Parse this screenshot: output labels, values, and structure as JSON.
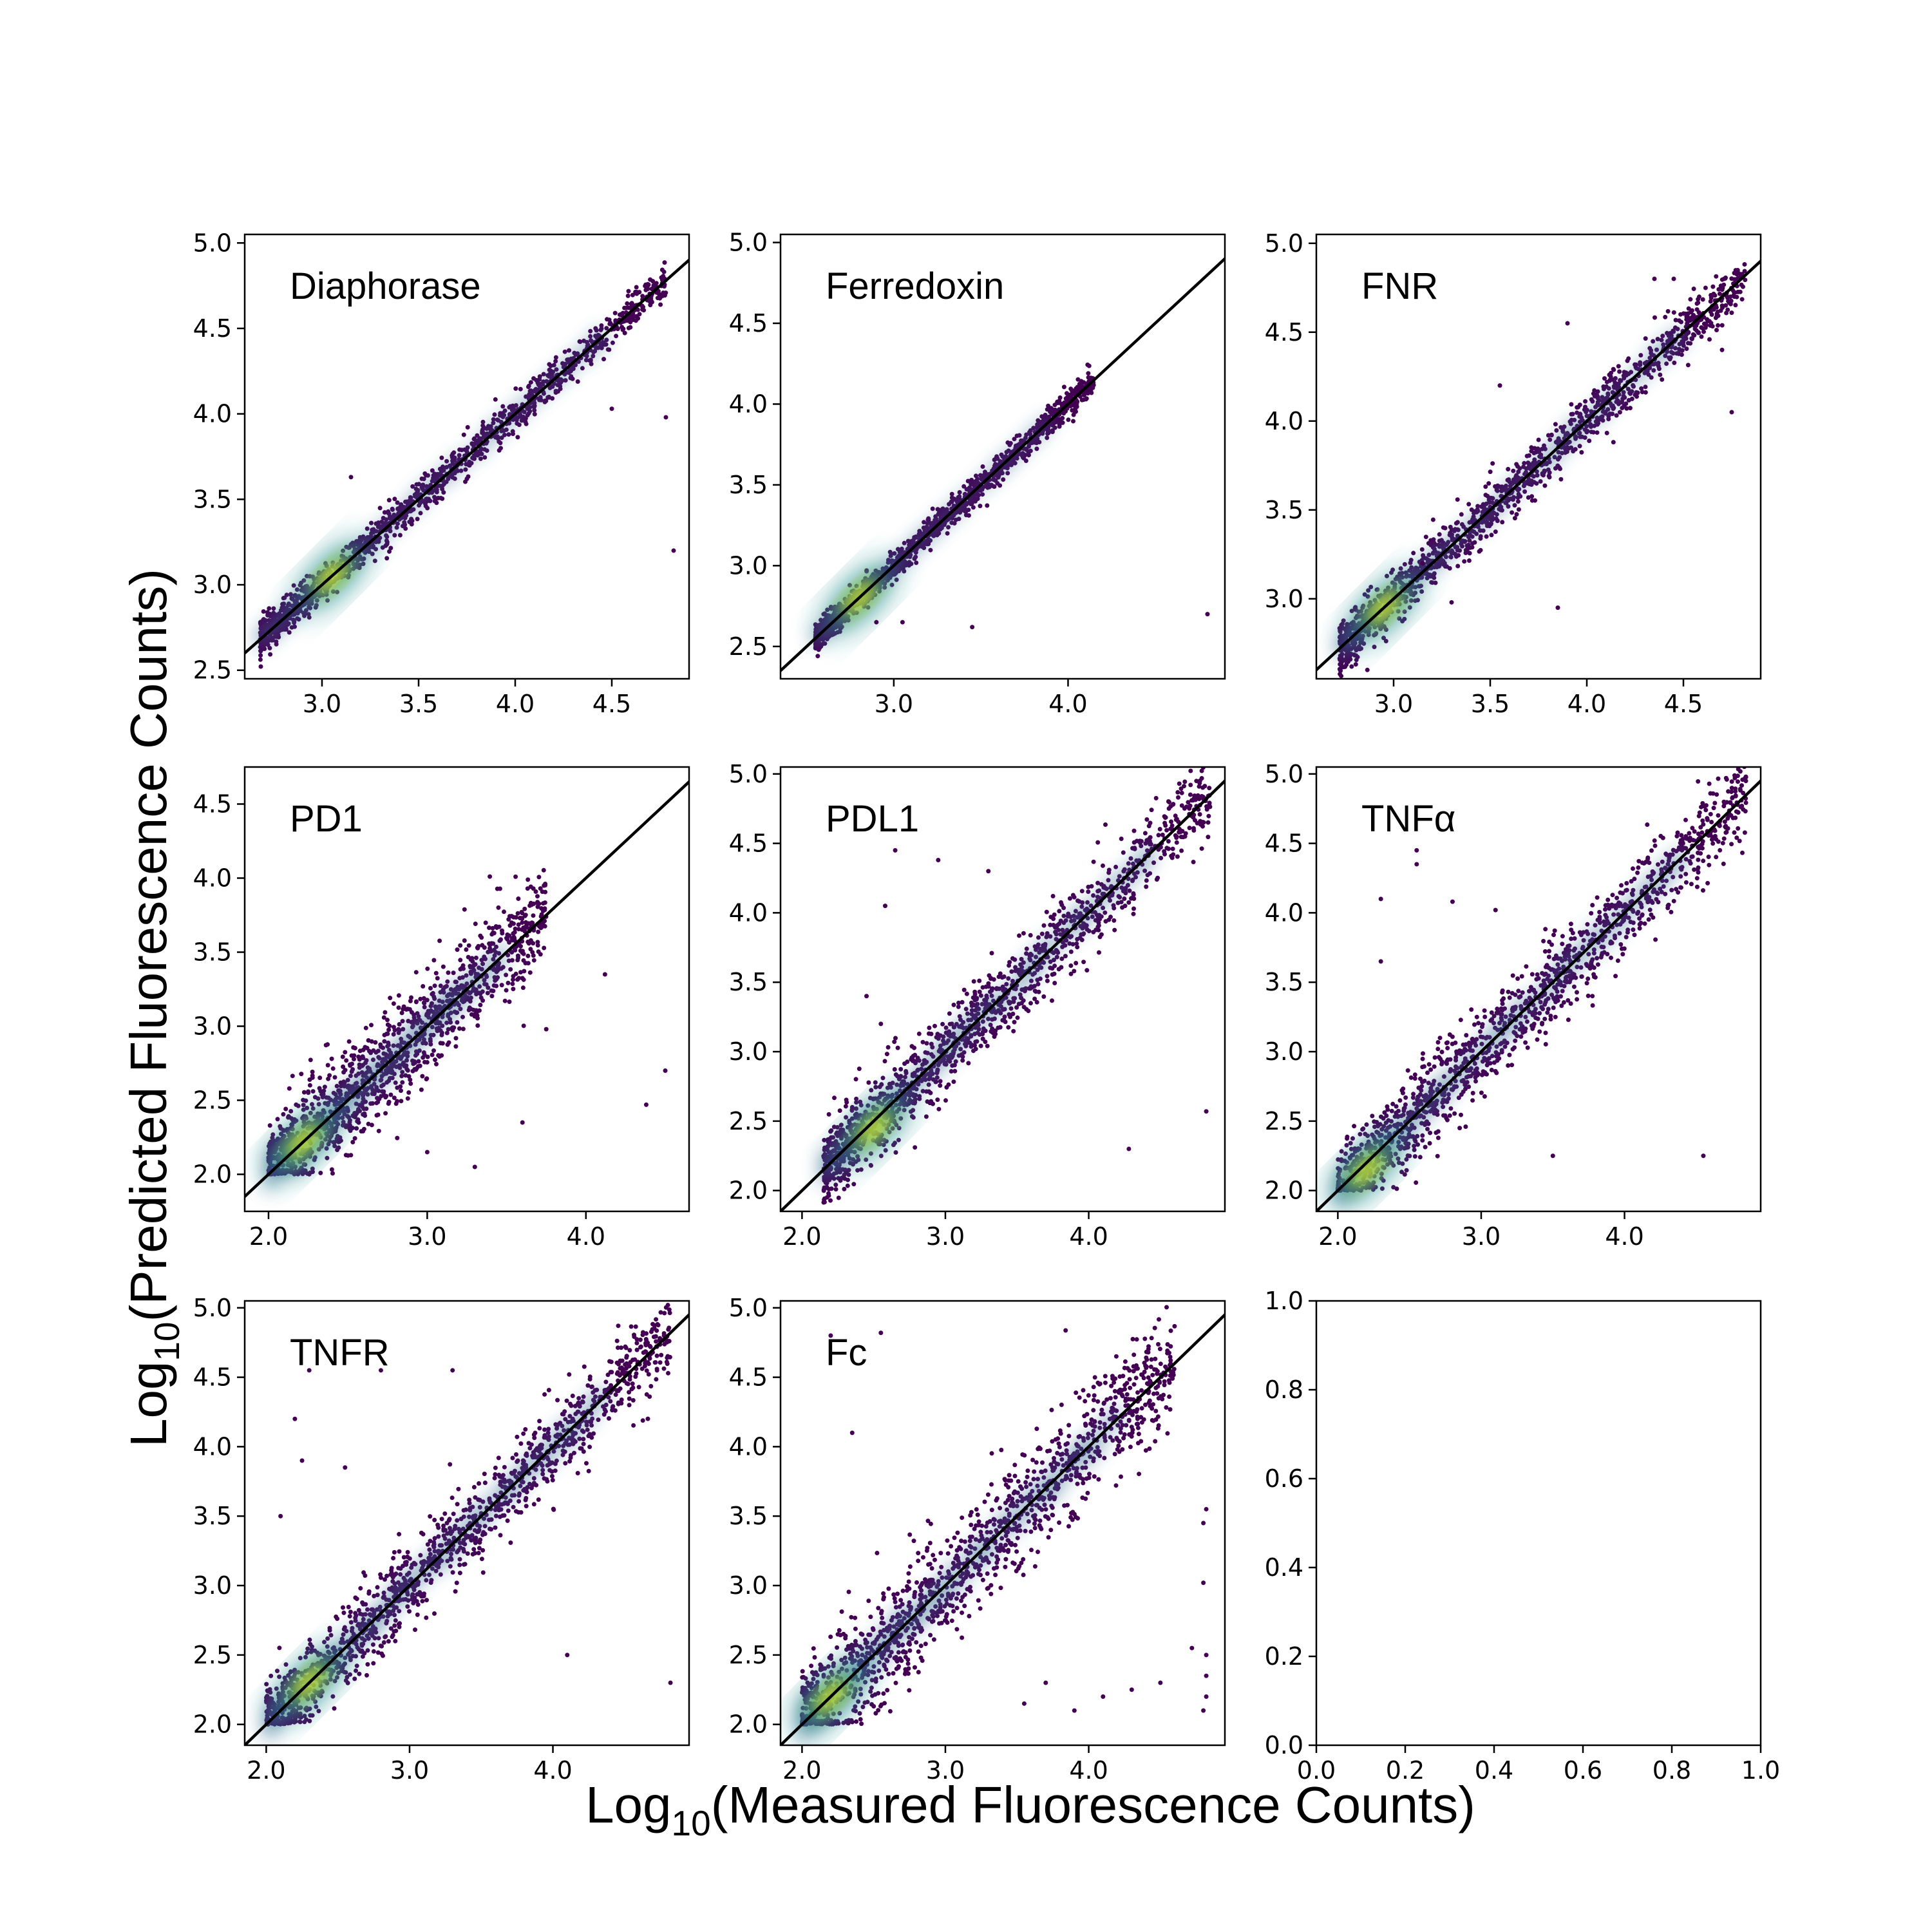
{
  "figure": {
    "xlabel_prefix": "Log",
    "xlabel_sub": "10",
    "xlabel_rest": "(Measured Fluorescence Counts)",
    "ylabel_prefix": "Log",
    "ylabel_sub": "10",
    "ylabel_rest": "(Predicted Fluorescence Counts)"
  },
  "chart_data": [
    {
      "type": "scatter",
      "title": "Diaphorase",
      "xlim": [
        2.6,
        4.9
      ],
      "ylim": [
        2.45,
        5.05
      ],
      "xticks": [
        "3.0",
        "3.5",
        "4.0",
        "4.5"
      ],
      "yticks": [
        "2.5",
        "3.0",
        "3.5",
        "4.0",
        "4.5",
        "5.0"
      ],
      "identity_line": true,
      "x_range": [
        2.68,
        4.78
      ],
      "spread": 0.045,
      "density_peak": [
        3.05,
        3.05
      ],
      "outliers": [
        [
          3.15,
          3.63
        ],
        [
          4.5,
          4.03
        ],
        [
          4.78,
          3.98
        ],
        [
          4.82,
          3.2
        ]
      ]
    },
    {
      "type": "scatter",
      "title": "Ferredoxin",
      "xlim": [
        2.35,
        4.9
      ],
      "ylim": [
        2.3,
        5.05
      ],
      "xticks": [
        "3.0",
        "4.0"
      ],
      "yticks": [
        "2.5",
        "3.0",
        "3.5",
        "4.0",
        "4.5",
        "5.0"
      ],
      "identity_line": true,
      "x_range": [
        2.55,
        4.15
      ],
      "spread": 0.035,
      "density_peak": [
        2.8,
        2.8
      ],
      "outliers": [
        [
          2.9,
          2.65
        ],
        [
          3.05,
          2.65
        ],
        [
          3.45,
          2.62
        ],
        [
          4.8,
          2.7
        ]
      ]
    },
    {
      "type": "scatter",
      "title": "FNR",
      "xlim": [
        2.6,
        4.9
      ],
      "ylim": [
        2.55,
        5.05
      ],
      "xticks": [
        "3.0",
        "3.5",
        "4.0",
        "4.5"
      ],
      "yticks": [
        "3.0",
        "3.5",
        "4.0",
        "4.5",
        "5.0"
      ],
      "identity_line": true,
      "x_range": [
        2.72,
        4.82
      ],
      "spread": 0.06,
      "density_peak": [
        2.95,
        2.95
      ],
      "outliers": [
        [
          3.55,
          4.2
        ],
        [
          3.9,
          4.55
        ],
        [
          4.35,
          4.8
        ],
        [
          4.45,
          4.8
        ],
        [
          4.75,
          4.05
        ],
        [
          4.7,
          4.4
        ],
        [
          3.3,
          2.98
        ],
        [
          3.85,
          2.95
        ],
        [
          3.15,
          3.2
        ]
      ]
    },
    {
      "type": "scatter",
      "title": "PD1",
      "xlim": [
        1.85,
        4.65
      ],
      "ylim": [
        1.75,
        4.75
      ],
      "xticks": [
        "2.0",
        "3.0",
        "4.0"
      ],
      "yticks": [
        "2.0",
        "2.5",
        "3.0",
        "3.5",
        "4.0",
        "4.5"
      ],
      "identity_line": true,
      "x_range": [
        2.0,
        3.75
      ],
      "spread": 0.14,
      "floor": 2.0,
      "density_peak": [
        2.22,
        2.22
      ],
      "outliers": [
        [
          4.12,
          3.35
        ],
        [
          4.5,
          2.7
        ],
        [
          4.38,
          2.47
        ],
        [
          3.75,
          2.98
        ],
        [
          3.3,
          2.05
        ],
        [
          3.0,
          2.15
        ],
        [
          3.6,
          2.35
        ]
      ]
    },
    {
      "type": "scatter",
      "title": "PDL1",
      "xlim": [
        1.85,
        4.95
      ],
      "ylim": [
        1.85,
        5.05
      ],
      "xticks": [
        "2.0",
        "3.0",
        "4.0"
      ],
      "yticks": [
        "2.0",
        "2.5",
        "3.0",
        "3.5",
        "4.0",
        "4.5",
        "5.0"
      ],
      "identity_line": true,
      "x_range": [
        2.15,
        4.85
      ],
      "spread": 0.12,
      "density_peak": [
        2.5,
        2.45
      ],
      "outliers": [
        [
          2.65,
          4.45
        ],
        [
          2.58,
          4.05
        ],
        [
          2.95,
          4.38
        ],
        [
          3.3,
          4.3
        ],
        [
          4.28,
          2.3
        ],
        [
          4.82,
          2.57
        ],
        [
          2.45,
          3.4
        ],
        [
          2.55,
          3.2
        ]
      ]
    },
    {
      "type": "scatter",
      "title": "TNFα",
      "xlim": [
        1.85,
        4.95
      ],
      "ylim": [
        1.85,
        5.05
      ],
      "xticks": [
        "2.0",
        "3.0",
        "4.0"
      ],
      "yticks": [
        "2.0",
        "2.5",
        "3.0",
        "3.5",
        "4.0",
        "4.5",
        "5.0"
      ],
      "identity_line": true,
      "x_range": [
        2.0,
        4.85
      ],
      "spread": 0.13,
      "floor": 2.0,
      "density_peak": [
        2.2,
        2.15
      ],
      "outliers": [
        [
          2.3,
          4.1
        ],
        [
          2.55,
          4.45
        ],
        [
          2.55,
          4.35
        ],
        [
          2.8,
          4.08
        ],
        [
          3.1,
          4.02
        ],
        [
          2.3,
          3.65
        ],
        [
          3.5,
          2.25
        ],
        [
          4.55,
          2.25
        ],
        [
          2.85,
          2.45
        ]
      ]
    },
    {
      "type": "scatter",
      "title": "TNFR",
      "xlim": [
        1.85,
        4.95
      ],
      "ylim": [
        1.85,
        5.05
      ],
      "xticks": [
        "2.0",
        "3.0",
        "4.0"
      ],
      "yticks": [
        "2.0",
        "2.5",
        "3.0",
        "3.5",
        "4.0",
        "4.5",
        "5.0"
      ],
      "identity_line": true,
      "x_range": [
        2.0,
        4.82
      ],
      "spread": 0.12,
      "floor": 2.0,
      "ceiling": 4.82,
      "density_peak": [
        2.3,
        2.3
      ],
      "outliers": [
        [
          2.2,
          4.2
        ],
        [
          2.25,
          3.9
        ],
        [
          2.3,
          4.55
        ],
        [
          2.55,
          3.85
        ],
        [
          2.8,
          4.55
        ],
        [
          3.3,
          4.55
        ],
        [
          4.1,
          2.5
        ],
        [
          4.82,
          2.3
        ],
        [
          2.1,
          3.5
        ]
      ]
    },
    {
      "type": "scatter",
      "title": "Fc",
      "xlim": [
        1.85,
        4.95
      ],
      "ylim": [
        1.85,
        5.05
      ],
      "xticks": [
        "2.0",
        "3.0",
        "4.0"
      ],
      "yticks": [
        "2.0",
        "2.5",
        "3.0",
        "3.5",
        "4.0",
        "4.5",
        "5.0"
      ],
      "identity_line": true,
      "x_range": [
        2.0,
        4.6
      ],
      "spread": 0.16,
      "floor": 2.0,
      "density_peak": [
        2.2,
        2.2
      ],
      "outliers": [
        [
          2.2,
          4.8
        ],
        [
          2.55,
          4.82
        ],
        [
          2.35,
          4.1
        ],
        [
          4.82,
          3.55
        ],
        [
          4.8,
          3.45
        ],
        [
          4.8,
          3.02
        ],
        [
          4.82,
          2.5
        ],
        [
          4.82,
          2.2
        ],
        [
          4.8,
          2.1
        ],
        [
          4.82,
          2.35
        ],
        [
          4.5,
          2.3
        ],
        [
          4.3,
          2.25
        ],
        [
          3.9,
          2.1
        ],
        [
          3.7,
          2.3
        ],
        [
          3.55,
          2.15
        ],
        [
          4.1,
          2.2
        ],
        [
          4.72,
          2.55
        ]
      ]
    },
    {
      "type": "empty",
      "title": "",
      "xlim": [
        0,
        1
      ],
      "ylim": [
        0,
        1
      ],
      "xticks": [
        "0.0",
        "0.2",
        "0.4",
        "0.6",
        "0.8",
        "1.0"
      ],
      "yticks": [
        "0.0",
        "0.2",
        "0.4",
        "0.6",
        "0.8",
        "1.0"
      ],
      "identity_line": false
    }
  ]
}
